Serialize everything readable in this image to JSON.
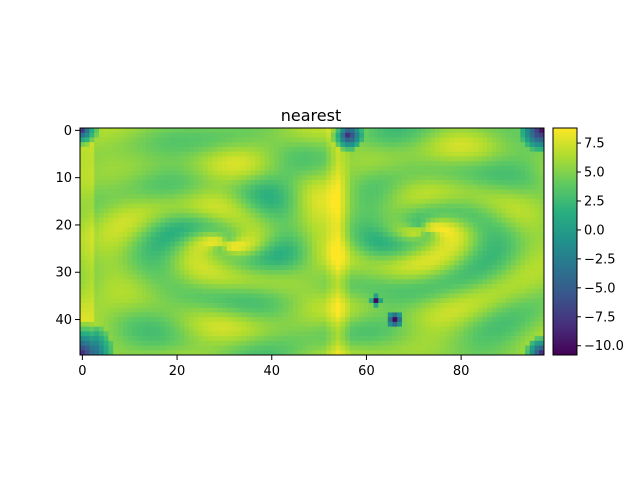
{
  "chart_data": {
    "type": "heatmap",
    "title": "nearest",
    "interpolation": "nearest",
    "xlabel": "",
    "ylabel": "",
    "grid": false,
    "grid_shape": {
      "rows": 48,
      "cols": 98
    },
    "x_range": [
      -0.5,
      97.5
    ],
    "y_range": [
      -0.5,
      47.5
    ],
    "y_inverted": true,
    "x_ticks": [
      {
        "value": 0,
        "label": "0"
      },
      {
        "value": 20,
        "label": "20"
      },
      {
        "value": 40,
        "label": "40"
      },
      {
        "value": 60,
        "label": "60"
      },
      {
        "value": 80,
        "label": "80"
      }
    ],
    "y_ticks": [
      {
        "value": 0,
        "label": "0"
      },
      {
        "value": 10,
        "label": "10"
      },
      {
        "value": 20,
        "label": "20"
      },
      {
        "value": 30,
        "label": "30"
      },
      {
        "value": 40,
        "label": "40"
      }
    ],
    "colorbar": {
      "colormap": "viridis",
      "vmin": -10.8,
      "vmax": 8.8,
      "ticks": [
        {
          "value": 7.5,
          "label": "7.5"
        },
        {
          "value": 5.0,
          "label": "5.0"
        },
        {
          "value": 2.5,
          "label": "2.5"
        },
        {
          "value": 0.0,
          "label": "0.0"
        },
        {
          "value": -2.5,
          "label": "−2.5"
        },
        {
          "value": -5.0,
          "label": "−5.0"
        },
        {
          "value": -7.5,
          "label": "−7.5"
        },
        {
          "value": -10.0,
          "label": "−10.0"
        }
      ]
    },
    "colors": {
      "low": "#440154",
      "mid": "#21918c",
      "high": "#fde725"
    }
  }
}
